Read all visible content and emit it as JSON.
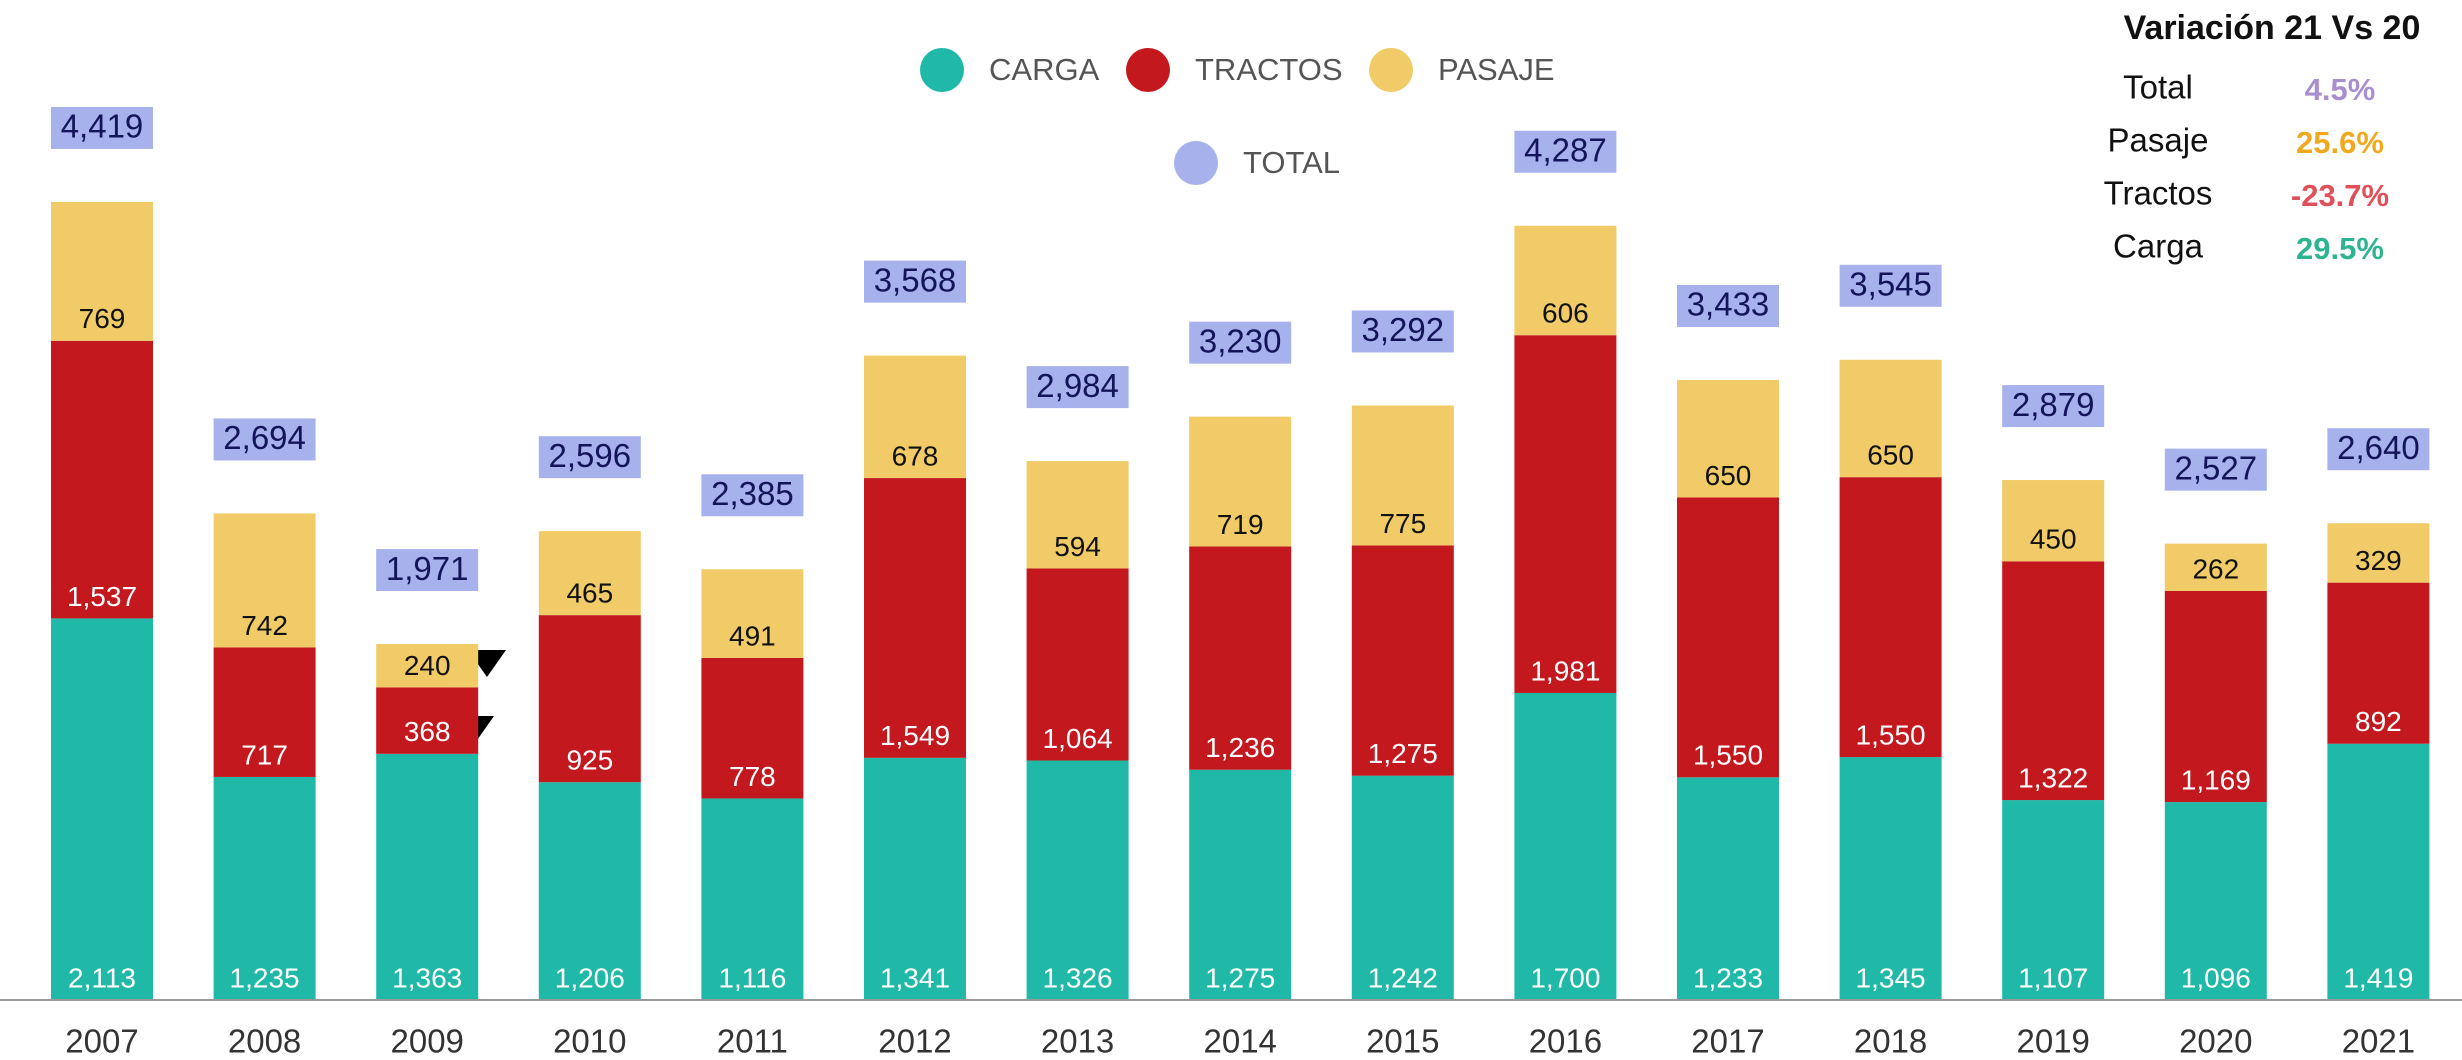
{
  "chart_data": {
    "type": "stacked_bar",
    "categories": [
      "2007",
      "2008",
      "2009",
      "2010",
      "2011",
      "2012",
      "2013",
      "2014",
      "2015",
      "2016",
      "2017",
      "2018",
      "2019",
      "2020",
      "2021"
    ],
    "series": [
      {
        "name": "CARGA",
        "color": "#20b9a8",
        "values": [
          2113,
          1235,
          1363,
          1206,
          1116,
          1341,
          1326,
          1275,
          1242,
          1700,
          1233,
          1345,
          1107,
          1096,
          1419
        ],
        "value_labels": [
          "2,113",
          "1,235",
          "1,363",
          "1,206",
          "1,116",
          "1,341",
          "1,326",
          "1,275",
          "1,242",
          "1,700",
          "1,233",
          "1,345",
          "1,107",
          "1,096",
          "1,419"
        ]
      },
      {
        "name": "TRACTOS",
        "color": "#c3191e",
        "values": [
          1537,
          717,
          368,
          925,
          778,
          1549,
          1064,
          1236,
          1275,
          1981,
          1550,
          1550,
          1322,
          1169,
          892
        ],
        "value_labels": [
          "1,537",
          "717",
          "368",
          "925",
          "778",
          "1,549",
          "1,064",
          "1,236",
          "1,275",
          "1,981",
          "1,550",
          "1,550",
          "1,322",
          "1,169",
          "892"
        ]
      },
      {
        "name": "PASAJE",
        "color": "#f0cb67",
        "values": [
          769,
          742,
          240,
          465,
          491,
          678,
          594,
          719,
          775,
          606,
          650,
          650,
          450,
          262,
          329
        ],
        "value_labels": [
          "769",
          "742",
          "240",
          "465",
          "491",
          "678",
          "594",
          "719",
          "775",
          "606",
          "650",
          "650",
          "450",
          "262",
          "329"
        ]
      },
      {
        "name": "TOTAL",
        "color": "#a7b1eb",
        "values": [
          4419,
          2694,
          1971,
          2596,
          2385,
          3568,
          2984,
          3230,
          3292,
          4287,
          3433,
          3545,
          2879,
          2527,
          2640
        ],
        "value_labels": [
          "4,419",
          "2,694",
          "1,971",
          "2,596",
          "2,385",
          "3,568",
          "2,984",
          "3,230",
          "3,292",
          "4,287",
          "3,433",
          "3,545",
          "2,879",
          "2,527",
          "2,640"
        ]
      }
    ],
    "ylim": [
      0,
      5000
    ],
    "variation": {
      "title": "Variación 21 Vs 20",
      "rows": [
        {
          "label": "Total",
          "value": "4.5%",
          "color": "#a98fd0"
        },
        {
          "label": "Pasaje",
          "value": "25.6%",
          "color": "#f0a81e"
        },
        {
          "label": "Tractos",
          "value": "-23.7%",
          "color": "#e0505a"
        },
        {
          "label": "Carga",
          "value": "29.5%",
          "color": "#2fb491"
        }
      ]
    }
  }
}
